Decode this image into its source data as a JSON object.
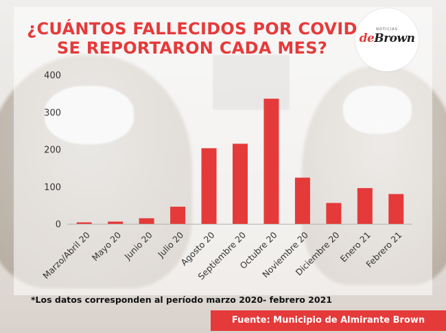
{
  "title": {
    "line1": "¿CUÁNTOS FALLECIDOS POR COVID",
    "line2": "SE REPORTARON CADA MES?"
  },
  "logo": {
    "prefix": "de",
    "suffix": "Brown",
    "tagline": "NOTICIAS"
  },
  "footnote": "*Los datos corresponden al período marzo 2020- febrero 2021",
  "source": "Fuente: Municipio de Almirante Brown",
  "colors": {
    "accent": "#e53a3a",
    "bar": "#e53a3a",
    "text": "#333333"
  },
  "chart_data": {
    "type": "bar",
    "title": "¿CUÁNTOS FALLECIDOS POR COVID SE REPORTARON CADA MES?",
    "xlabel": "",
    "ylabel": "",
    "ylim": [
      0,
      400
    ],
    "yticks": [
      0,
      100,
      200,
      300,
      400
    ],
    "grid": false,
    "categories": [
      "Marzo/Abril 20",
      "Mayo 20",
      "Junio 20",
      "Julio 20",
      "Agosto 20",
      "Septiembre 20",
      "Octubre 20",
      "Noviembre 20",
      "Diciembre 20",
      "Enero 21",
      "Febrero 21"
    ],
    "values": [
      4,
      6,
      15,
      46,
      203,
      215,
      336,
      124,
      56,
      96,
      80
    ]
  }
}
